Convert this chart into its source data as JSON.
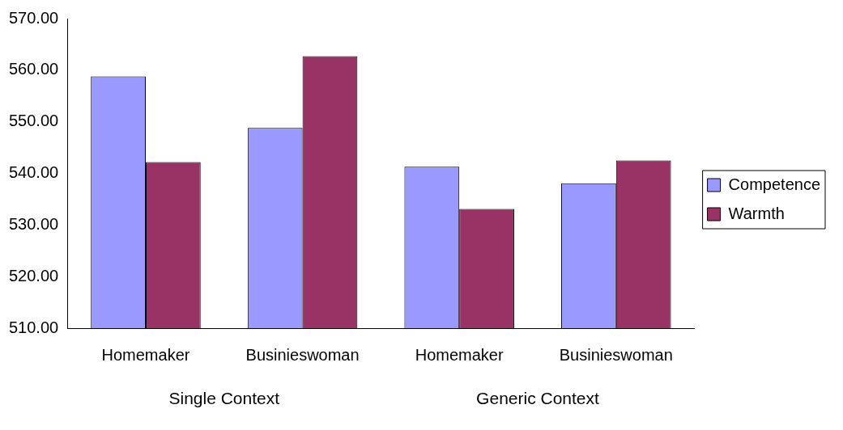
{
  "chart_data": {
    "type": "bar",
    "categories": [
      "Homemaker",
      "Businieswoman",
      "Homemaker",
      "Businieswoman"
    ],
    "series": [
      {
        "name": "Competence",
        "color": "#9999ff",
        "values": [
          558.8,
          548.8,
          541.3,
          538.1
        ]
      },
      {
        "name": "Warmth",
        "color": "#993366",
        "values": [
          542.2,
          562.7,
          533.1,
          542.5
        ]
      }
    ],
    "ylim": [
      510,
      570
    ],
    "yticks": [
      {
        "value": 510,
        "label": "510.00"
      },
      {
        "value": 520,
        "label": "520.00"
      },
      {
        "value": 530,
        "label": "530.00"
      },
      {
        "value": 540,
        "label": "540.00"
      },
      {
        "value": 550,
        "label": "550.00"
      },
      {
        "value": 560,
        "label": "560.00"
      },
      {
        "value": 570,
        "label": "570.00"
      }
    ],
    "annotations": [
      "Single Context",
      "Generic Context"
    ],
    "grid": false,
    "legend": "right"
  }
}
